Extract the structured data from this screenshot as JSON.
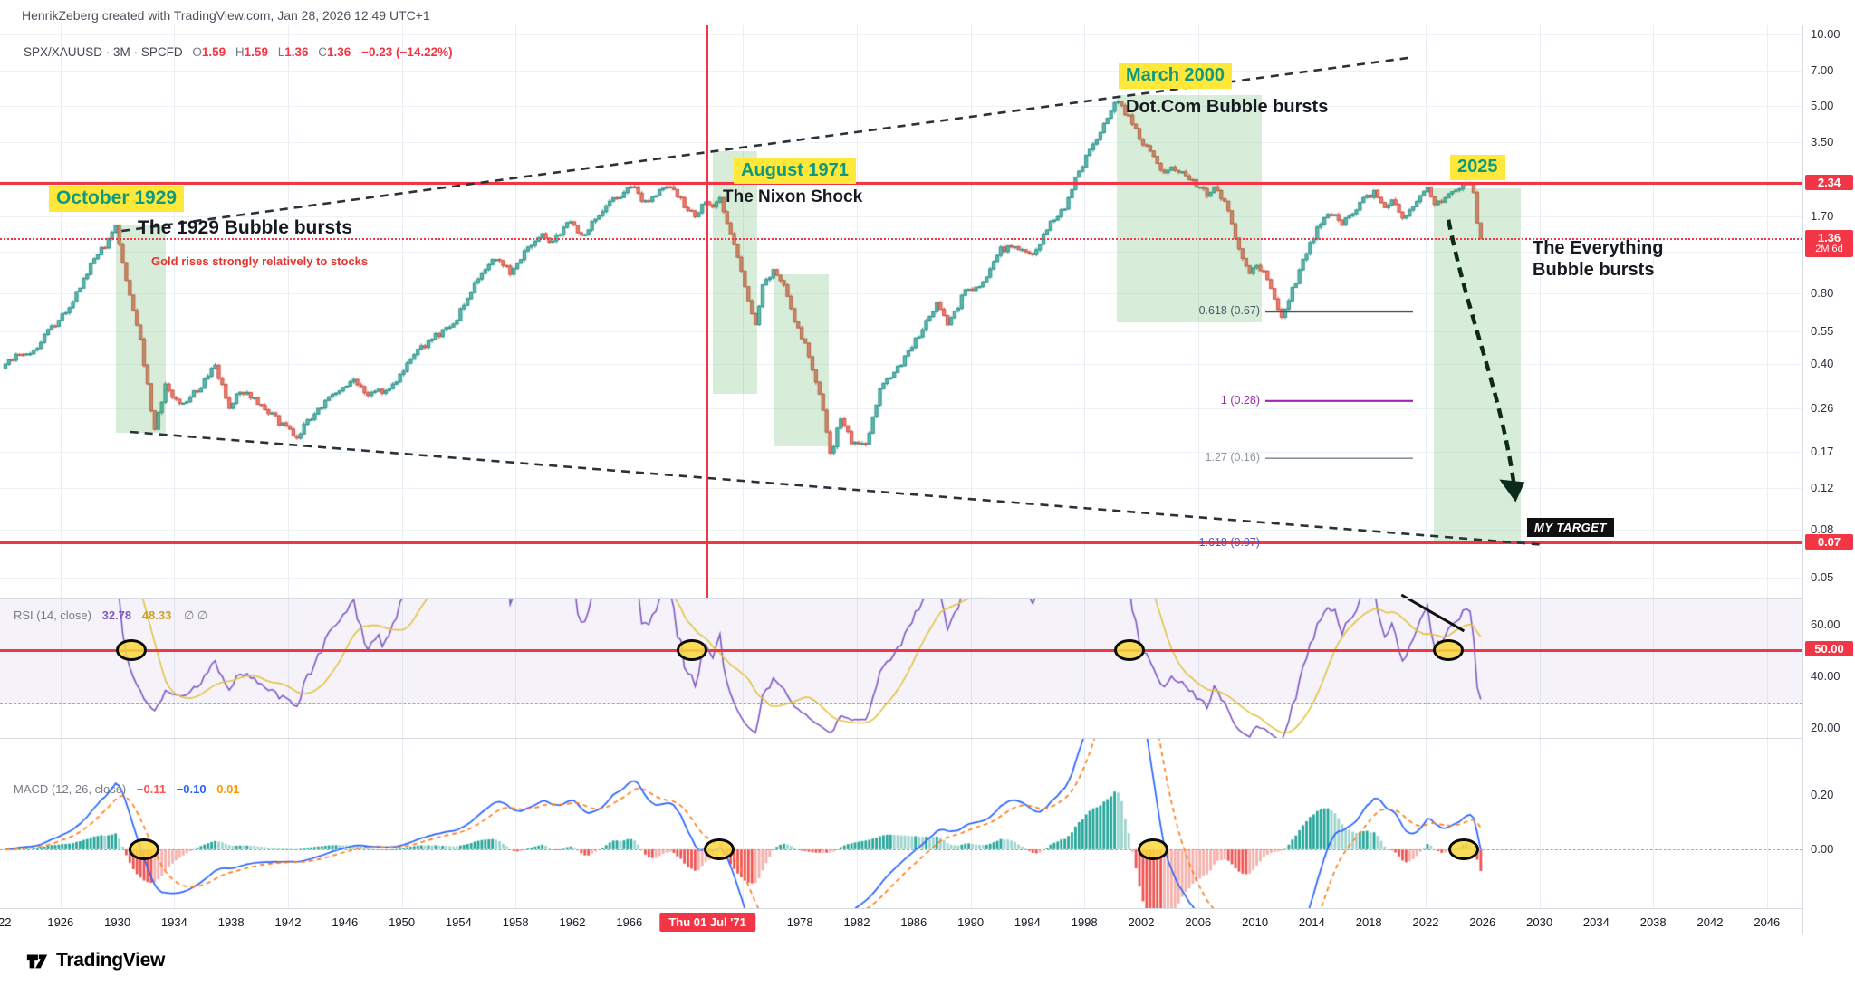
{
  "header": {
    "credit": "HenrikZeberg created with TradingView.com, Jan 28, 2026 12:49 UTC+1"
  },
  "footer": {
    "brand": "TradingView"
  },
  "legend": {
    "symbol": "SPX/XAUUSD",
    "interval": "3M",
    "exchange": "SPCFD",
    "o_label": "O",
    "o": "1.59",
    "h_label": "H",
    "h": "1.59",
    "l_label": "L",
    "l": "1.36",
    "c_label": "C",
    "c": "1.36",
    "change": "−0.23 (−14.22%)"
  },
  "annotations": {
    "october_1929": "October 1929",
    "bubble_1929": "The 1929 Bubble bursts",
    "gold_rises": "Gold rises strongly relatively to stocks",
    "august_1971": "August 1971",
    "nixon_shock": "The Nixon Shock",
    "march_2000": "March 2000",
    "dotcom": "Dot.Com Bubble bursts",
    "year_2025": "2025",
    "everything_bubble": "The Everything Bubble bursts",
    "my_target": "MY TARGET"
  },
  "chart_data": {
    "type": "candlestick",
    "title": "SPX/XAUUSD ratio, 3-month candles, log scale, 1922-2046",
    "y_scale": "log",
    "x_range": [
      1922,
      2046
    ],
    "last_candle": {
      "open": 1.59,
      "high": 1.59,
      "low": 1.36,
      "close": 1.36
    },
    "anchors": [
      [
        1922,
        0.4
      ],
      [
        1923,
        0.44
      ],
      [
        1924,
        0.46
      ],
      [
        1925,
        0.55
      ],
      [
        1926,
        0.64
      ],
      [
        1927,
        0.8
      ],
      [
        1928,
        1.05
      ],
      [
        1929,
        1.28
      ],
      [
        1929.75,
        1.52
      ],
      [
        1930.5,
        0.92
      ],
      [
        1931.5,
        0.5
      ],
      [
        1932.5,
        0.21
      ],
      [
        1933.25,
        0.33
      ],
      [
        1934.25,
        0.27
      ],
      [
        1935.5,
        0.31
      ],
      [
        1936.75,
        0.4
      ],
      [
        1937.75,
        0.26
      ],
      [
        1938.5,
        0.31
      ],
      [
        1940,
        0.27
      ],
      [
        1941.5,
        0.22
      ],
      [
        1942.5,
        0.2
      ],
      [
        1944,
        0.26
      ],
      [
        1945.5,
        0.31
      ],
      [
        1946.5,
        0.34
      ],
      [
        1947.5,
        0.3
      ],
      [
        1949,
        0.31
      ],
      [
        1950,
        0.38
      ],
      [
        1951,
        0.46
      ],
      [
        1952.5,
        0.54
      ],
      [
        1953.5,
        0.58
      ],
      [
        1954.5,
        0.78
      ],
      [
        1955.5,
        0.98
      ],
      [
        1956.5,
        1.12
      ],
      [
        1957.5,
        0.98
      ],
      [
        1958.5,
        1.18
      ],
      [
        1959.5,
        1.42
      ],
      [
        1960.5,
        1.32
      ],
      [
        1961.75,
        1.62
      ],
      [
        1962.5,
        1.38
      ],
      [
        1963.5,
        1.68
      ],
      [
        1964.5,
        1.95
      ],
      [
        1965.75,
        2.18
      ],
      [
        1966.2,
        2.32
      ],
      [
        1966.9,
        1.92
      ],
      [
        1967.5,
        2.08
      ],
      [
        1968.6,
        2.28
      ],
      [
        1969.5,
        1.98
      ],
      [
        1970.5,
        1.68
      ],
      [
        1971.2,
        1.95
      ],
      [
        1971.5,
        1.85
      ],
      [
        1972.2,
        2.02
      ],
      [
        1973,
        1.45
      ],
      [
        1974,
        0.85
      ],
      [
        1974.8,
        0.58
      ],
      [
        1975.3,
        0.88
      ],
      [
        1976,
        1.0
      ],
      [
        1976.8,
        0.88
      ],
      [
        1977.5,
        0.62
      ],
      [
        1978.5,
        0.44
      ],
      [
        1979.5,
        0.26
      ],
      [
        1980.1,
        0.155
      ],
      [
        1980.6,
        0.24
      ],
      [
        1981.5,
        0.19
      ],
      [
        1982.5,
        0.18
      ],
      [
        1983.5,
        0.32
      ],
      [
        1984.5,
        0.36
      ],
      [
        1985.5,
        0.46
      ],
      [
        1986.5,
        0.56
      ],
      [
        1987.6,
        0.74
      ],
      [
        1988.3,
        0.58
      ],
      [
        1989.5,
        0.82
      ],
      [
        1990.8,
        0.88
      ],
      [
        1992,
        1.22
      ],
      [
        1993,
        1.28
      ],
      [
        1994.3,
        1.18
      ],
      [
        1995.5,
        1.58
      ],
      [
        1996.5,
        1.85
      ],
      [
        1997.5,
        2.65
      ],
      [
        1998.5,
        3.45
      ],
      [
        1999.4,
        4.35
      ],
      [
        2000.2,
        5.25
      ],
      [
        2000.9,
        4.55
      ],
      [
        2001.7,
        3.7
      ],
      [
        2002.5,
        3.2
      ],
      [
        2003.2,
        2.6
      ],
      [
        2004,
        2.7
      ],
      [
        2005,
        2.55
      ],
      [
        2005.9,
        2.25
      ],
      [
        2006.6,
        2.1
      ],
      [
        2007.2,
        2.25
      ],
      [
        2008,
        1.8
      ],
      [
        2008.8,
        1.2
      ],
      [
        2009.4,
        0.98
      ],
      [
        2010,
        1.08
      ],
      [
        2010.8,
        0.92
      ],
      [
        2011.7,
        0.62
      ],
      [
        2012.5,
        0.83
      ],
      [
        2013.3,
        1.1
      ],
      [
        2014.2,
        1.48
      ],
      [
        2015.2,
        1.76
      ],
      [
        2015.9,
        1.58
      ],
      [
        2016.6,
        1.68
      ],
      [
        2017.5,
        1.98
      ],
      [
        2018.2,
        2.15
      ],
      [
        2018.9,
        1.88
      ],
      [
        2019.6,
        2.02
      ],
      [
        2020.2,
        1.62
      ],
      [
        2020.9,
        1.88
      ],
      [
        2021.6,
        2.12
      ],
      [
        2022,
        2.28
      ],
      [
        2022.6,
        1.88
      ],
      [
        2023.2,
        2.02
      ],
      [
        2023.9,
        2.15
      ],
      [
        2024.6,
        2.28
      ],
      [
        2025,
        2.33
      ],
      [
        2025.3,
        2.15
      ],
      [
        2025.6,
        1.85
      ],
      [
        2025.75,
        1.59
      ],
      [
        2026,
        1.36
      ]
    ],
    "y_axis": {
      "ticks": [
        {
          "label": "10.00",
          "value": 10
        },
        {
          "label": "7.00",
          "value": 7
        },
        {
          "label": "5.00",
          "value": 5
        },
        {
          "label": "3.50",
          "value": 3.5
        },
        {
          "label": "1.70",
          "value": 1.7
        },
        {
          "label": "0.80",
          "value": 0.8
        },
        {
          "label": "0.55",
          "value": 0.55
        },
        {
          "label": "0.40",
          "value": 0.4
        },
        {
          "label": "0.26",
          "value": 0.26
        },
        {
          "label": "0.17",
          "value": 0.17
        },
        {
          "label": "0.12",
          "value": 0.12
        },
        {
          "label": "0.08",
          "value": 0.08
        },
        {
          "label": "0.05",
          "value": 0.05
        }
      ],
      "gridline_values": [
        10,
        7,
        5,
        3.5,
        2.4,
        1.7,
        1.2,
        0.8,
        0.55,
        0.4,
        0.26,
        0.17,
        0.12,
        0.08,
        0.05
      ]
    },
    "levels": [
      {
        "badge": "2.34",
        "value": 2.34,
        "style": "solid"
      },
      {
        "badge": "1.36",
        "value": 1.36,
        "style": "dotted",
        "countdown": "2M 6d"
      },
      {
        "badge": "0.07",
        "value": 0.07,
        "style": "solid"
      }
    ],
    "fib_levels": [
      {
        "label": "0.618 (0.67)",
        "value": 0.67,
        "color": "#455a64",
        "width": 2.4,
        "line": true
      },
      {
        "label": "1 (0.28)",
        "value": 0.28,
        "color": "#9c27b0",
        "width": 2.2,
        "line": true
      },
      {
        "label": "1.27 (0.16)",
        "value": 0.16,
        "color": "#8f949c",
        "width": 1.6,
        "line": true
      },
      {
        "label": "1.618 (0.07)",
        "value": 0.07,
        "color": "#5050c8",
        "width": 0,
        "line": false
      }
    ],
    "trendlines": [
      {
        "name": "upper-megaphone",
        "x1": 1930.3,
        "p1": 1.47,
        "x2": 2021.2,
        "p2": 8.02
      },
      {
        "name": "lower-megaphone",
        "x1": 1930.9,
        "p1": 0.207,
        "x2": 2030.0,
        "p2": 0.069
      }
    ],
    "projection_arrow": {
      "from_year": 2023.6,
      "from_price": 1.64,
      "to_year": 2028.2,
      "to_price": 0.113
    },
    "zones": [
      {
        "name": "1929-crash",
        "from": 1929.9,
        "to": 1933.4,
        "top": 1.55,
        "bottom": 0.205
      },
      {
        "name": "nixon-crash",
        "from": 1971.9,
        "to": 1975.0,
        "top": 3.2,
        "bottom": 0.3
      },
      {
        "name": "1976-1980-decline",
        "from": 1976.2,
        "to": 1980.0,
        "top": 0.96,
        "bottom": 0.18
      },
      {
        "name": "dotcom-crash",
        "from": 2000.3,
        "to": 2010.5,
        "top": 5.53,
        "bottom": 0.6
      },
      {
        "name": "everything-crash",
        "from": 2022.6,
        "to": 2028.7,
        "top": 2.23,
        "bottom": 0.071
      }
    ],
    "x_axis": {
      "labels": [
        {
          "text": "'22",
          "year": 1922
        },
        {
          "text": "1926",
          "year": 1926
        },
        {
          "text": "1930",
          "year": 1930
        },
        {
          "text": "1934",
          "year": 1934
        },
        {
          "text": "1938",
          "year": 1938
        },
        {
          "text": "1942",
          "year": 1942
        },
        {
          "text": "1946",
          "year": 1946
        },
        {
          "text": "1950",
          "year": 1950
        },
        {
          "text": "1954",
          "year": 1954
        },
        {
          "text": "1958",
          "year": 1958
        },
        {
          "text": "1962",
          "year": 1962
        },
        {
          "text": "1966",
          "year": 1966
        },
        {
          "text": "1978",
          "year": 1978
        },
        {
          "text": "1982",
          "year": 1982
        },
        {
          "text": "1986",
          "year": 1986
        },
        {
          "text": "1990",
          "year": 1990
        },
        {
          "text": "1994",
          "year": 1994
        },
        {
          "text": "1998",
          "year": 1998
        },
        {
          "text": "2002",
          "year": 2002
        },
        {
          "text": "2006",
          "year": 2006
        },
        {
          "text": "2010",
          "year": 2010
        },
        {
          "text": "2014",
          "year": 2014
        },
        {
          "text": "2018",
          "year": 2018
        },
        {
          "text": "2022",
          "year": 2022
        },
        {
          "text": "2026",
          "year": 2026
        },
        {
          "text": "2030",
          "year": 2030
        },
        {
          "text": "2034",
          "year": 2034
        },
        {
          "text": "2038",
          "year": 2038
        },
        {
          "text": "2042",
          "year": 2042
        },
        {
          "text": "2046",
          "year": 2046
        }
      ],
      "crosshair": {
        "text": "Thu 01 Jul '71",
        "year": 1971.5
      },
      "gridline_years": [
        1926,
        1934,
        1942,
        1950,
        1958,
        1966,
        1974,
        1982,
        1990,
        1998,
        2006,
        2014,
        2022,
        2030,
        2038,
        2046
      ]
    },
    "rsi": {
      "title": "RSI (14, close)",
      "value": "32.78",
      "ma": "48.33",
      "empty": "∅ ∅",
      "ticks": [
        {
          "label": "60.00",
          "value": 60
        },
        {
          "label": "40.00",
          "value": 40
        },
        {
          "label": "20.00",
          "value": 20
        }
      ],
      "mid_badge": "50.00",
      "mid": 50,
      "band": [
        30,
        70
      ],
      "marker_years": [
        1931.0,
        1970.4,
        2001.2,
        2023.6
      ],
      "trendline": {
        "x1": 2020.3,
        "r1": 71.4,
        "x2": 2024.7,
        "r2": 57.4
      }
    },
    "macd": {
      "title": "MACD (12, 26, close)",
      "histogram": "−0.11",
      "macd": "−0.10",
      "signal": "0.01",
      "ticks": [
        {
          "label": "0.20",
          "value": 0.2
        },
        {
          "label": "0.00",
          "value": 0
        }
      ],
      "marker_years": [
        1931.9,
        1972.3,
        2002.8,
        2024.7
      ]
    },
    "colors": {
      "up": "#63b8b0",
      "up_stroke": "#2f968c",
      "down": "#ee8074",
      "down_stroke": "#d05546",
      "accent_red": "#f23645",
      "rsi_line": "#7e57c2",
      "rsi_ma": "#e3c33f",
      "macd_line": "#2962ff",
      "macd_signal": "#ff7d1a",
      "hist_up": "#26a69a",
      "hist_up_light": "#9fd4cf",
      "hist_down": "#ef5350",
      "hist_down_light": "#f5b1ad",
      "label_bg": "#ffe83a",
      "label_text": "#0f9980"
    }
  }
}
